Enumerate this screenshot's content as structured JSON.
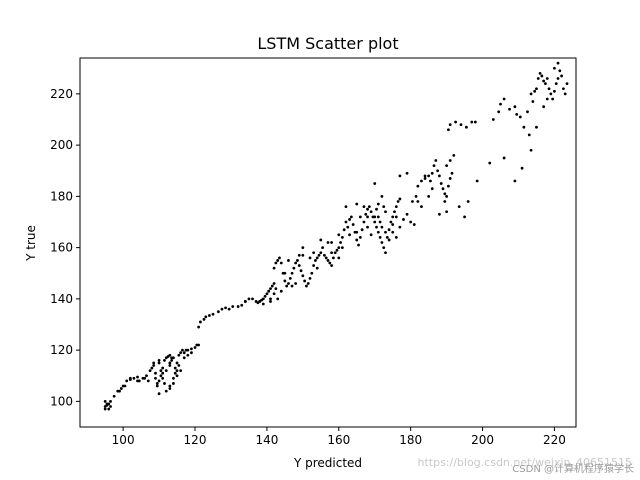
{
  "chart_data": {
    "type": "scatter",
    "title": "LSTM Scatter plot",
    "xlabel": "Y predicted",
    "ylabel": "Y true",
    "xlim": [
      88,
      226
    ],
    "ylim": [
      90,
      234
    ],
    "xticks": [
      100,
      120,
      140,
      160,
      180,
      200,
      220
    ],
    "yticks": [
      100,
      120,
      140,
      160,
      180,
      200,
      220
    ],
    "grid": false,
    "marker_color": "#000000",
    "series": [
      {
        "points": [
          [
            95,
            100
          ],
          [
            95,
            98
          ],
          [
            95.5,
            99
          ],
          [
            96,
            97
          ],
          [
            96.5,
            98
          ],
          [
            95,
            97
          ],
          [
            96,
            99
          ],
          [
            95.5,
            98.5
          ],
          [
            96.5,
            100
          ],
          [
            97.5,
            102
          ],
          [
            98.5,
            104
          ],
          [
            99.5,
            105
          ],
          [
            100.5,
            106
          ],
          [
            101,
            108
          ],
          [
            102,
            108.5
          ],
          [
            103,
            109
          ],
          [
            104,
            109.5
          ],
          [
            104.5,
            108
          ],
          [
            105.5,
            109
          ],
          [
            106.5,
            110
          ],
          [
            107.5,
            112
          ],
          [
            108,
            113
          ],
          [
            108.5,
            115
          ],
          [
            108.5,
            114
          ],
          [
            109,
            111
          ],
          [
            109,
            109
          ],
          [
            109.5,
            107
          ],
          [
            109.5,
            106
          ],
          [
            110,
            103
          ],
          [
            110,
            116
          ],
          [
            110.5,
            112
          ],
          [
            110.5,
            110
          ],
          [
            111,
            109
          ],
          [
            111,
            113
          ],
          [
            111.5,
            116
          ],
          [
            112,
            117
          ],
          [
            112.5,
            117.5
          ],
          [
            113,
            118
          ],
          [
            113.5,
            117
          ],
          [
            113.5,
            116
          ],
          [
            114,
            117
          ],
          [
            114.5,
            113
          ],
          [
            114.5,
            111
          ],
          [
            114,
            109
          ],
          [
            113,
            106
          ],
          [
            112,
            104
          ],
          [
            111.5,
            107
          ],
          [
            115,
            115
          ],
          [
            115.5,
            118
          ],
          [
            116,
            119
          ],
          [
            116.5,
            120
          ],
          [
            117,
            119
          ],
          [
            117.5,
            120
          ],
          [
            118,
            120
          ],
          [
            119,
            120.5
          ],
          [
            120,
            121
          ],
          [
            120.5,
            122
          ],
          [
            121,
            122
          ],
          [
            115.5,
            114
          ],
          [
            116,
            112
          ],
          [
            115,
            110
          ],
          [
            114,
            107
          ],
          [
            113,
            105
          ],
          [
            121,
            129
          ],
          [
            121.5,
            131
          ],
          [
            122.5,
            132
          ],
          [
            123,
            133
          ],
          [
            124,
            133.5
          ],
          [
            125,
            134
          ],
          [
            126.5,
            135
          ],
          [
            127.5,
            136
          ],
          [
            128.5,
            136.5
          ],
          [
            129.5,
            136
          ],
          [
            130.5,
            137
          ],
          [
            132,
            137
          ],
          [
            133,
            137.5
          ],
          [
            134,
            139
          ],
          [
            135,
            140
          ],
          [
            136,
            140
          ],
          [
            137,
            139
          ],
          [
            137.5,
            138.5
          ],
          [
            138,
            139
          ],
          [
            138.5,
            139.5
          ],
          [
            139,
            140
          ],
          [
            139.5,
            141
          ],
          [
            140,
            142
          ],
          [
            140.5,
            143
          ],
          [
            141,
            144
          ],
          [
            141.5,
            145
          ],
          [
            142,
            146
          ],
          [
            142.5,
            144
          ],
          [
            142,
            142
          ],
          [
            141,
            140
          ],
          [
            142,
            152
          ],
          [
            142.5,
            154
          ],
          [
            143,
            155
          ],
          [
            143.5,
            156
          ],
          [
            144,
            154
          ],
          [
            144.5,
            150
          ],
          [
            145,
            147
          ],
          [
            145.5,
            145
          ],
          [
            146,
            146
          ],
          [
            146.5,
            148
          ],
          [
            147,
            150
          ],
          [
            147.5,
            152
          ],
          [
            148,
            154
          ],
          [
            148.5,
            155
          ],
          [
            149,
            153
          ],
          [
            149.5,
            151
          ],
          [
            150,
            149
          ],
          [
            150.5,
            147
          ],
          [
            151,
            145
          ],
          [
            151.5,
            146
          ],
          [
            152,
            148
          ],
          [
            152.5,
            150
          ],
          [
            153,
            153
          ],
          [
            153.5,
            155
          ],
          [
            154,
            156
          ],
          [
            154.5,
            157
          ],
          [
            155,
            158
          ],
          [
            155.5,
            160
          ],
          [
            156,
            157
          ],
          [
            156.5,
            156
          ],
          [
            157,
            155
          ],
          [
            157.5,
            154
          ],
          [
            158,
            153
          ],
          [
            158.5,
            156
          ],
          [
            159,
            158
          ],
          [
            159.5,
            159
          ],
          [
            160,
            160
          ],
          [
            160.5,
            162
          ],
          [
            161,
            164
          ],
          [
            161.5,
            167
          ],
          [
            162,
            170
          ],
          [
            162.5,
            168
          ],
          [
            163,
            171
          ],
          [
            163.5,
            172
          ],
          [
            164,
            169
          ],
          [
            164.5,
            166
          ],
          [
            165,
            163
          ],
          [
            165.5,
            161
          ],
          [
            166,
            164
          ],
          [
            166.5,
            167
          ],
          [
            167,
            170
          ],
          [
            167.5,
            173
          ],
          [
            168,
            175
          ],
          [
            168.5,
            176
          ],
          [
            169,
            174
          ],
          [
            169.5,
            172
          ],
          [
            170,
            170
          ],
          [
            170.5,
            168
          ],
          [
            171,
            166
          ],
          [
            171.5,
            164
          ],
          [
            172,
            162
          ],
          [
            172.5,
            160
          ],
          [
            173,
            158
          ],
          [
            173.5,
            164
          ],
          [
            174,
            167
          ],
          [
            174.5,
            170
          ],
          [
            175,
            172
          ],
          [
            175.5,
            174
          ],
          [
            176,
            176
          ],
          [
            176.5,
            178
          ],
          [
            177,
            179
          ],
          [
            172,
            180
          ],
          [
            172.5,
            176
          ],
          [
            173,
            174
          ],
          [
            171,
            172
          ],
          [
            171.5,
            170
          ],
          [
            170.5,
            175
          ],
          [
            175,
            166
          ],
          [
            176,
            164
          ],
          [
            177,
            168
          ],
          [
            178,
            171
          ],
          [
            179,
            173
          ],
          [
            180,
            170
          ],
          [
            181,
            169
          ],
          [
            180.5,
            178
          ],
          [
            181.5,
            180
          ],
          [
            182,
            184
          ],
          [
            183,
            186
          ],
          [
            184,
            187
          ],
          [
            185,
            188
          ],
          [
            185.5,
            186
          ],
          [
            186,
            189
          ],
          [
            186.5,
            192
          ],
          [
            187,
            194
          ],
          [
            187.5,
            190
          ],
          [
            188,
            188
          ],
          [
            188.5,
            185
          ],
          [
            189,
            183
          ],
          [
            189.5,
            181
          ],
          [
            190,
            180
          ],
          [
            190.5,
            184
          ],
          [
            191,
            187
          ],
          [
            191.5,
            189
          ],
          [
            190,
            174
          ],
          [
            189.5,
            178
          ],
          [
            190,
            192
          ],
          [
            191,
            194
          ],
          [
            192,
            196
          ],
          [
            190.5,
            206
          ],
          [
            191,
            208
          ],
          [
            192.5,
            209
          ],
          [
            194,
            208
          ],
          [
            195.5,
            207
          ],
          [
            197,
            209
          ],
          [
            198,
            209
          ],
          [
            198.5,
            186
          ],
          [
            196,
            178
          ],
          [
            195,
            172
          ],
          [
            193.5,
            176
          ],
          [
            203,
            210
          ],
          [
            204.5,
            213
          ],
          [
            205,
            216
          ],
          [
            206,
            218
          ],
          [
            207.5,
            214
          ],
          [
            209,
            215
          ],
          [
            209.5,
            212
          ],
          [
            210.5,
            211
          ],
          [
            211.5,
            207
          ],
          [
            212.5,
            213
          ],
          [
            213.5,
            220
          ],
          [
            214,
            217
          ],
          [
            214.5,
            221
          ],
          [
            215,
            222
          ],
          [
            215.5,
            226
          ],
          [
            216,
            228
          ],
          [
            216.5,
            227
          ],
          [
            217,
            225
          ],
          [
            217.5,
            224
          ],
          [
            218,
            226
          ],
          [
            218.5,
            222
          ],
          [
            219,
            220
          ],
          [
            219.5,
            218
          ],
          [
            220,
            221
          ],
          [
            220.5,
            224
          ],
          [
            221,
            226
          ],
          [
            221.5,
            229
          ],
          [
            222,
            227
          ],
          [
            222.5,
            222
          ],
          [
            223,
            220
          ],
          [
            223.5,
            224
          ],
          [
            221,
            232
          ],
          [
            220,
            230
          ],
          [
            218,
            218
          ],
          [
            217,
            215
          ],
          [
            215,
            207
          ],
          [
            213,
            204
          ],
          [
            213.5,
            198
          ],
          [
            206,
            195
          ],
          [
            209,
            186
          ],
          [
            211,
            191
          ],
          [
            202,
            193
          ],
          [
            188,
            173
          ],
          [
            182,
            178
          ],
          [
            183,
            176
          ],
          [
            177,
            188
          ],
          [
            179,
            189
          ],
          [
            184,
            188
          ],
          [
            186,
            183
          ],
          [
            185,
            180
          ],
          [
            170,
            185
          ],
          [
            165,
            177
          ],
          [
            162,
            176
          ],
          [
            160,
            165
          ],
          [
            158,
            162
          ],
          [
            150,
            160
          ],
          [
            149,
            157
          ],
          [
            146,
            155
          ],
          [
            145,
            150
          ],
          [
            144,
            143
          ],
          [
            139,
            138
          ],
          [
            134,
            139
          ],
          [
            100,
            106
          ],
          [
            99,
            104
          ],
          [
            102,
            109
          ],
          [
            104,
            108
          ],
          [
            106,
            109
          ],
          [
            107,
            108
          ],
          [
            110,
            115
          ],
          [
            112,
            112
          ],
          [
            113,
            114
          ],
          [
            115,
            112
          ],
          [
            117,
            117
          ],
          [
            118,
            118
          ],
          [
            119,
            119
          ],
          [
            110,
            108
          ],
          [
            111,
            111
          ],
          [
            113,
            115
          ],
          [
            168,
            168
          ],
          [
            169,
            165
          ],
          [
            173,
            166
          ],
          [
            174,
            163
          ],
          [
            175,
            169
          ],
          [
            176,
            172
          ],
          [
            172,
            168
          ],
          [
            171,
            177
          ],
          [
            170,
            172
          ],
          [
            168,
            172
          ],
          [
            166,
            172
          ],
          [
            167,
            176
          ],
          [
            160,
            156
          ],
          [
            161,
            160
          ],
          [
            163,
            165
          ],
          [
            165,
            166
          ],
          [
            157,
            162
          ],
          [
            155,
            163
          ],
          [
            153,
            158
          ],
          [
            154,
            152
          ],
          [
            152,
            156
          ],
          [
            150,
            157
          ],
          [
            148,
            146
          ],
          [
            147,
            145
          ],
          [
            143,
            140
          ],
          [
            141,
            139
          ],
          [
            158,
            158
          ]
        ]
      }
    ]
  },
  "watermark": {
    "url_text": "https://blog.csdn.net/weixin_40651515",
    "brand_text": "CSDN @计算机程序猿学长"
  }
}
